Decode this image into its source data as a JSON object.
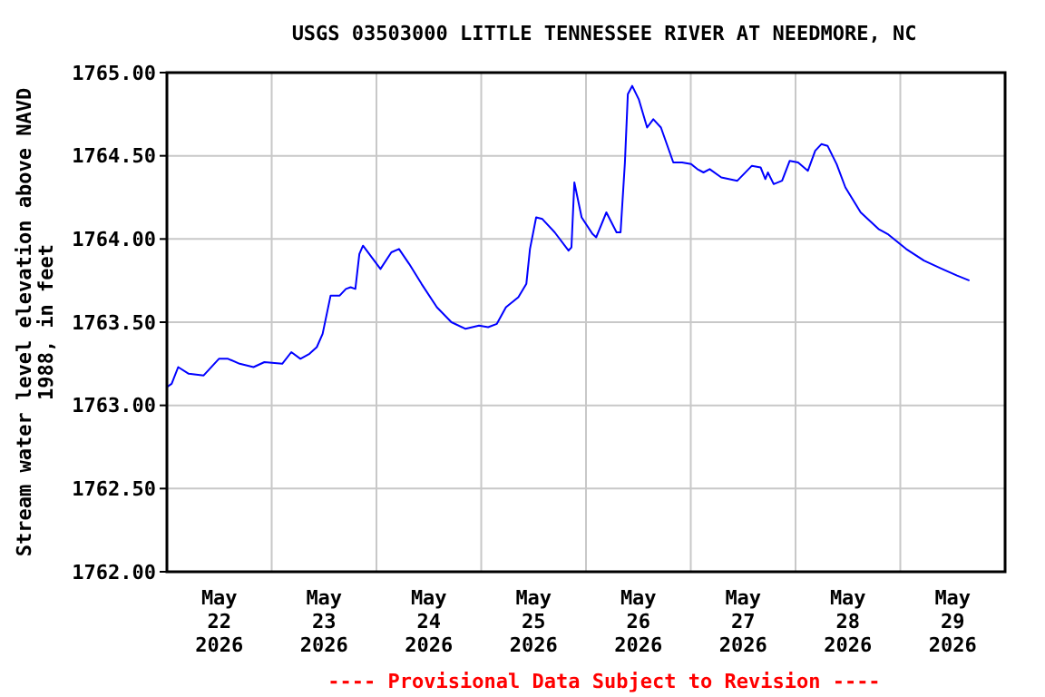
{
  "chart_data": {
    "type": "line",
    "title": "USGS 03503000 LITTLE TENNESSEE RIVER AT NEEDMORE, NC",
    "ylabel": "Stream water level elevation above NAVD 1988, in feet",
    "annotations": [
      "---- Provisional Data Subject to Revision ----"
    ],
    "xlim": [
      "2026-05-22T00:00",
      "2026-05-30T00:00"
    ],
    "xticks": [
      {
        "value": "2026-05-22T12:00",
        "label": "May 22 2026"
      },
      {
        "value": "2026-05-23T12:00",
        "label": "May 23 2026"
      },
      {
        "value": "2026-05-24T12:00",
        "label": "May 24 2026"
      },
      {
        "value": "2026-05-25T12:00",
        "label": "May 25 2026"
      },
      {
        "value": "2026-05-26T12:00",
        "label": "May 26 2026"
      },
      {
        "value": "2026-05-27T12:00",
        "label": "May 27 2026"
      },
      {
        "value": "2026-05-28T12:00",
        "label": "May 28 2026"
      },
      {
        "value": "2026-05-29T12:00",
        "label": "May 29 2026"
      },
      {
        "value": "2026-05-23T00:00",
        "label": null
      },
      {
        "value": "2026-05-24T00:00",
        "label": null
      },
      {
        "value": "2026-05-25T00:00",
        "label": null
      },
      {
        "value": "2026-05-26T00:00",
        "label": null
      },
      {
        "value": "2026-05-27T00:00",
        "label": null
      },
      {
        "value": "2026-05-28T00:00",
        "label": null
      },
      {
        "value": "2026-05-29T00:00",
        "label": null
      }
    ],
    "ylim": [
      1762,
      1765
    ],
    "yticks": [
      {
        "value": 1762,
        "label": "1762.00"
      },
      {
        "value": 1762.5,
        "label": "1762.50"
      },
      {
        "value": 1763,
        "label": "1763.00"
      },
      {
        "value": 1763.5,
        "label": "1763.50"
      },
      {
        "value": 1764,
        "label": "1764.00"
      },
      {
        "value": 1764.5,
        "label": "1764.50"
      },
      {
        "value": 1765,
        "label": "1765.00"
      }
    ],
    "grid": true,
    "series": [
      {
        "color": "#0000ff",
        "x": [
          "2026-05-22T00:00",
          "2026-05-22T01:05",
          "2026-05-22T02:35",
          "2026-05-22T05:00",
          "2026-05-22T08:25",
          "2026-05-22T11:55",
          "2026-05-22T14:00",
          "2026-05-22T16:40",
          "2026-05-22T19:50",
          "2026-05-22T22:20",
          "2026-05-23T02:25",
          "2026-05-23T04:30",
          "2026-05-23T06:35",
          "2026-05-23T08:40",
          "2026-05-23T10:20",
          "2026-05-23T11:40",
          "2026-05-23T13:30",
          "2026-05-23T15:35",
          "2026-05-23T17:00",
          "2026-05-23T18:05",
          "2026-05-23T19:10",
          "2026-05-23T20:05",
          "2026-05-23T20:55",
          "2026-05-24T00:55",
          "2026-05-24T03:25",
          "2026-05-24T05:10",
          "2026-05-24T07:30",
          "2026-05-24T10:20",
          "2026-05-24T13:50",
          "2026-05-24T17:10",
          "2026-05-24T20:25",
          "2026-05-24T23:30",
          "2026-05-25T01:35",
          "2026-05-25T03:35",
          "2026-05-25T05:40",
          "2026-05-25T08:30",
          "2026-05-25T10:20",
          "2026-05-25T11:10",
          "2026-05-25T12:35",
          "2026-05-25T14:00",
          "2026-05-25T16:50",
          "2026-05-25T20:00",
          "2026-05-25T20:40",
          "2026-05-25T21:20",
          "2026-05-25T23:00",
          "2026-05-26T01:30",
          "2026-05-26T02:20",
          "2026-05-26T04:40",
          "2026-05-26T07:00",
          "2026-05-26T07:55",
          "2026-05-26T08:55",
          "2026-05-26T09:35",
          "2026-05-26T10:35",
          "2026-05-26T12:05",
          "2026-05-26T14:00",
          "2026-05-26T15:25",
          "2026-05-26T17:10",
          "2026-05-26T20:00",
          "2026-05-26T22:00",
          "2026-05-27T00:05",
          "2026-05-27T01:30",
          "2026-05-27T02:55",
          "2026-05-27T04:20",
          "2026-05-27T07:00",
          "2026-05-27T10:40",
          "2026-05-27T14:00",
          "2026-05-27T16:00",
          "2026-05-27T17:05",
          "2026-05-27T17:40",
          "2026-05-27T19:00",
          "2026-05-27T20:55",
          "2026-05-27T22:40",
          "2026-05-28T00:35",
          "2026-05-28T02:50",
          "2026-05-28T04:30",
          "2026-05-28T05:55",
          "2026-05-28T07:20",
          "2026-05-28T09:25",
          "2026-05-28T11:25",
          "2026-05-28T14:55",
          "2026-05-28T19:00",
          "2026-05-28T21:05",
          "2026-05-29T01:20",
          "2026-05-29T05:25",
          "2026-05-29T09:35",
          "2026-05-29T13:00",
          "2026-05-29T15:50"
        ],
        "values": [
          1763.11,
          1763.13,
          1763.23,
          1763.19,
          1763.18,
          1763.28,
          1763.28,
          1763.25,
          1763.23,
          1763.26,
          1763.25,
          1763.32,
          1763.28,
          1763.31,
          1763.35,
          1763.43,
          1763.66,
          1763.66,
          1763.7,
          1763.71,
          1763.7,
          1763.91,
          1763.96,
          1763.82,
          1763.92,
          1763.94,
          1763.85,
          1763.73,
          1763.59,
          1763.5,
          1763.46,
          1763.48,
          1763.47,
          1763.49,
          1763.59,
          1763.65,
          1763.73,
          1763.94,
          1764.13,
          1764.12,
          1764.04,
          1763.93,
          1763.95,
          1764.34,
          1764.13,
          1764.03,
          1764.01,
          1764.16,
          1764.04,
          1764.04,
          1764.46,
          1764.87,
          1764.92,
          1764.84,
          1764.67,
          1764.72,
          1764.67,
          1764.46,
          1764.46,
          1764.45,
          1764.42,
          1764.4,
          1764.42,
          1764.37,
          1764.35,
          1764.44,
          1764.43,
          1764.36,
          1764.4,
          1764.33,
          1764.35,
          1764.47,
          1764.46,
          1764.41,
          1764.53,
          1764.57,
          1764.56,
          1764.45,
          1764.31,
          1764.16,
          1764.06,
          1764.03,
          1763.94,
          1763.87,
          1763.82,
          1763.78,
          1763.75
        ]
      }
    ]
  }
}
